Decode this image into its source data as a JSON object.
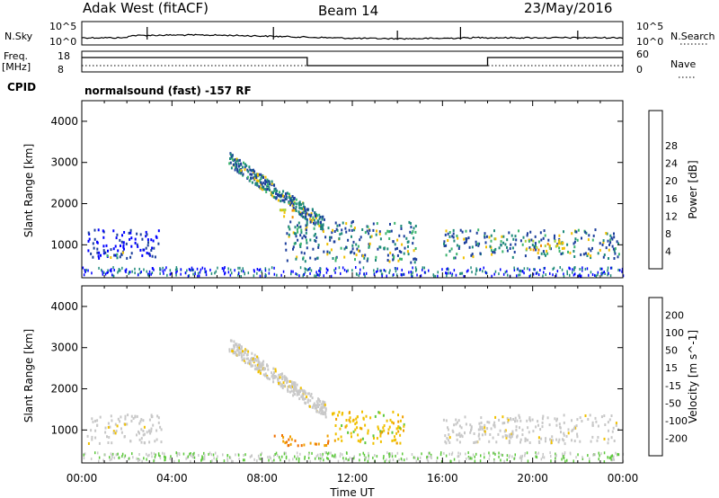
{
  "header": {
    "site": "Adak West (fitACF)",
    "beam": "Beam 14",
    "date": "23/May/2016"
  },
  "panels": {
    "nsky_label": "N.Sky",
    "nsky_ticks": [
      "10^5",
      "10^0"
    ],
    "nsearch_label": "N.Search",
    "nsearch_ticks": [
      "10^5",
      "10^0"
    ],
    "freq_label_line1": "Freq.",
    "freq_label_line2": "[MHz]",
    "freq_ticks": [
      "18",
      "8"
    ],
    "nave_label": "Nave",
    "nave_ticks": [
      "60",
      "0"
    ],
    "cpid_label": "CPID",
    "cpid_text": "normalsound (fast) -157 RF"
  },
  "chart_data": [
    {
      "type": "heatmap",
      "name": "power",
      "ylabel": "Slant Range [km]",
      "xlabel": "",
      "xlim": [
        0,
        24
      ],
      "ylim": [
        200,
        4500
      ],
      "x_ticks": [
        "00:00",
        "04:00",
        "08:00",
        "12:00",
        "16:00",
        "20:00",
        "00:00"
      ],
      "y_ticks": [
        "1000",
        "2000",
        "3000",
        "4000"
      ],
      "colorbar_label": "Power [dB]",
      "colorbar_ticks": [
        "4",
        "8",
        "12",
        "16",
        "20",
        "24",
        "28"
      ],
      "colorbar_colors": [
        "#0000ff",
        "#1c3f9c",
        "#1f8a7a",
        "#3cb46e",
        "#a8d23c",
        "#f0c000",
        "#f08c00",
        "#e84000",
        "#d80000"
      ],
      "features": [
        {
          "t_start": 0.2,
          "t_end": 3.5,
          "range_low": 700,
          "range_high": 1400,
          "level": "low"
        },
        {
          "t_start": 1.0,
          "t_end": 1.8,
          "range_low": 600,
          "range_high": 850,
          "level": "mid"
        },
        {
          "t_start": 6.5,
          "t_end": 10.8,
          "range_low": 1400,
          "range_high": 3200,
          "level": "mid"
        },
        {
          "t_start": 8.5,
          "t_end": 9.5,
          "range_low": 1700,
          "range_high": 1900,
          "level": "high"
        },
        {
          "t_start": 9.0,
          "t_end": 14.8,
          "range_low": 600,
          "range_high": 1600,
          "level": "mid"
        },
        {
          "t_start": 16.0,
          "t_end": 23.8,
          "range_low": 700,
          "range_high": 1400,
          "level": "mid"
        },
        {
          "t_start": 19.5,
          "t_end": 21.5,
          "range_low": 900,
          "range_high": 1150,
          "level": "high"
        }
      ]
    },
    {
      "type": "heatmap",
      "name": "velocity",
      "ylabel": "Slant Range [km]",
      "xlabel": "Time UT",
      "xlim": [
        0,
        24
      ],
      "ylim": [
        200,
        4500
      ],
      "x_ticks": [
        "00:00",
        "04:00",
        "08:00",
        "12:00",
        "16:00",
        "20:00",
        "00:00"
      ],
      "y_ticks": [
        "1000",
        "2000",
        "3000",
        "4000"
      ],
      "colorbar_label": "Velocity [m s^-1]",
      "colorbar_ticks": [
        "200",
        "100",
        "50",
        "15",
        "-15",
        "-50",
        "-100",
        "-200"
      ],
      "colorbar_colors": [
        "#1a2ca8",
        "#2f6fb0",
        "#2e8b57",
        "#5dc83c",
        "#c8c8c8",
        "#f0c000",
        "#f0a000",
        "#f07000",
        "#e80000"
      ],
      "features": [
        {
          "t_start": 0.2,
          "t_end": 3.5,
          "range_low": 700,
          "range_high": 1400,
          "level": "zero"
        },
        {
          "t_start": 6.5,
          "t_end": 10.8,
          "range_low": 1400,
          "range_high": 3200,
          "level": "zero"
        },
        {
          "t_start": 8.5,
          "t_end": 11.0,
          "range_low": 650,
          "range_high": 900,
          "level": "neg-mid"
        },
        {
          "t_start": 11.0,
          "t_end": 14.3,
          "range_low": 700,
          "range_high": 1500,
          "level": "neg-low"
        },
        {
          "t_start": 16.0,
          "t_end": 23.8,
          "range_low": 700,
          "range_high": 1400,
          "level": "zero"
        }
      ]
    }
  ]
}
